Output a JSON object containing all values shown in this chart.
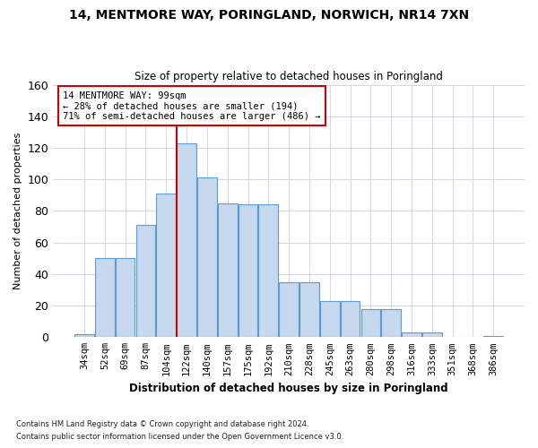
{
  "title": "14, MENTMORE WAY, PORINGLAND, NORWICH, NR14 7XN",
  "subtitle": "Size of property relative to detached houses in Poringland",
  "xlabel": "Distribution of detached houses by size in Poringland",
  "ylabel": "Number of detached properties",
  "bin_labels": [
    "34sqm",
    "52sqm",
    "69sqm",
    "87sqm",
    "104sqm",
    "122sqm",
    "140sqm",
    "157sqm",
    "175sqm",
    "192sqm",
    "210sqm",
    "228sqm",
    "245sqm",
    "263sqm",
    "280sqm",
    "298sqm",
    "316sqm",
    "333sqm",
    "351sqm",
    "368sqm",
    "386sqm"
  ],
  "bar_heights": [
    2,
    50,
    50,
    71,
    91,
    123,
    101,
    85,
    84,
    84,
    35,
    35,
    23,
    23,
    18,
    18,
    3,
    3,
    0,
    0,
    1
  ],
  "bar_color": "#c5d8ed",
  "bar_edge_color": "#5b9bd5",
  "vline_x": 4.5,
  "vline_color": "#cc0000",
  "ylim": [
    0,
    160
  ],
  "yticks": [
    0,
    20,
    40,
    60,
    80,
    100,
    120,
    140,
    160
  ],
  "annotation_line1": "14 MENTMORE WAY: 99sqm",
  "annotation_line2": "← 28% of detached houses are smaller (194)",
  "annotation_line3": "71% of semi-detached houses are larger (486) →",
  "footer_line1": "Contains HM Land Registry data © Crown copyright and database right 2024.",
  "footer_line2": "Contains public sector information licensed under the Open Government Licence v3.0.",
  "background_color": "#ffffff",
  "grid_color": "#d0d8e8"
}
